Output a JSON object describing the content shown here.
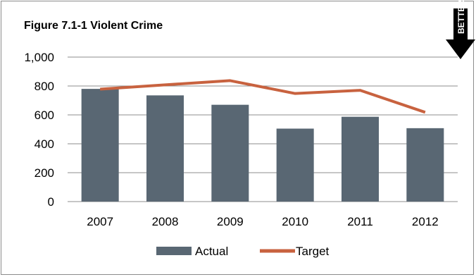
{
  "chart_data": {
    "type": "bar",
    "title": "Figure 7.1-1 Violent Crime",
    "badge": "BETTER",
    "categories": [
      "2007",
      "2008",
      "2009",
      "2010",
      "2011",
      "2012"
    ],
    "series": [
      {
        "name": "Actual",
        "type": "bar",
        "values": [
          780,
          735,
          670,
          505,
          587,
          508
        ],
        "color": "#596773"
      },
      {
        "name": "Target",
        "type": "line",
        "values": [
          778,
          808,
          837,
          748,
          770,
          618
        ],
        "color": "#c8623f"
      }
    ],
    "yticks": [
      "0",
      "200",
      "400",
      "600",
      "800",
      "1,000"
    ],
    "ylim": [
      0,
      1000
    ],
    "grid": true,
    "legend": "bottom"
  }
}
